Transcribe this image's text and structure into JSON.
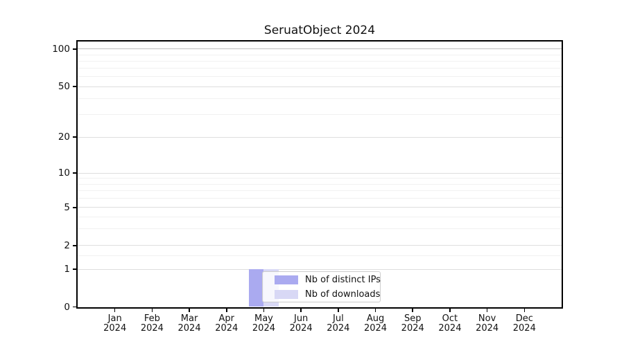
{
  "chart_data": {
    "type": "bar",
    "title": "SeruatObject 2024",
    "x_categories": [
      {
        "month": "Jan",
        "year": "2024"
      },
      {
        "month": "Feb",
        "year": "2024"
      },
      {
        "month": "Mar",
        "year": "2024"
      },
      {
        "month": "Apr",
        "year": "2024"
      },
      {
        "month": "May",
        "year": "2024"
      },
      {
        "month": "Jun",
        "year": "2024"
      },
      {
        "month": "Jul",
        "year": "2024"
      },
      {
        "month": "Aug",
        "year": "2024"
      },
      {
        "month": "Sep",
        "year": "2024"
      },
      {
        "month": "Oct",
        "year": "2024"
      },
      {
        "month": "Nov",
        "year": "2024"
      },
      {
        "month": "Dec",
        "year": "2024"
      }
    ],
    "series": [
      {
        "name": "Nb of distinct IPs",
        "color": "#aaaaf0",
        "values": [
          0,
          0,
          0,
          0,
          1,
          0,
          0,
          0,
          0,
          0,
          0,
          0
        ]
      },
      {
        "name": "Nb of downloads",
        "color": "#d8d8f5",
        "values": [
          0,
          0,
          0,
          0,
          1,
          0,
          0,
          0,
          0,
          0,
          0,
          0
        ]
      }
    ],
    "y_axis": {
      "scale": "log-like",
      "range": [
        0,
        100
      ],
      "major_ticks": [
        100,
        50,
        20,
        10,
        5,
        2,
        1,
        0
      ],
      "minor_gridlines": [
        90,
        80,
        70,
        60,
        40,
        30,
        9,
        8,
        7,
        6,
        4,
        3,
        1.5
      ]
    },
    "legend": {
      "entries": [
        "Nb of distinct IPs",
        "Nb of downloads"
      ],
      "location": "lower center"
    },
    "grid": true
  },
  "colors": {
    "grid_major": "#dedede",
    "grid_minor": "#f1f1f1",
    "grid_top": "#c0c0c0",
    "spine": "#000000",
    "legend_border": "#cccccc",
    "text": "#111111"
  }
}
